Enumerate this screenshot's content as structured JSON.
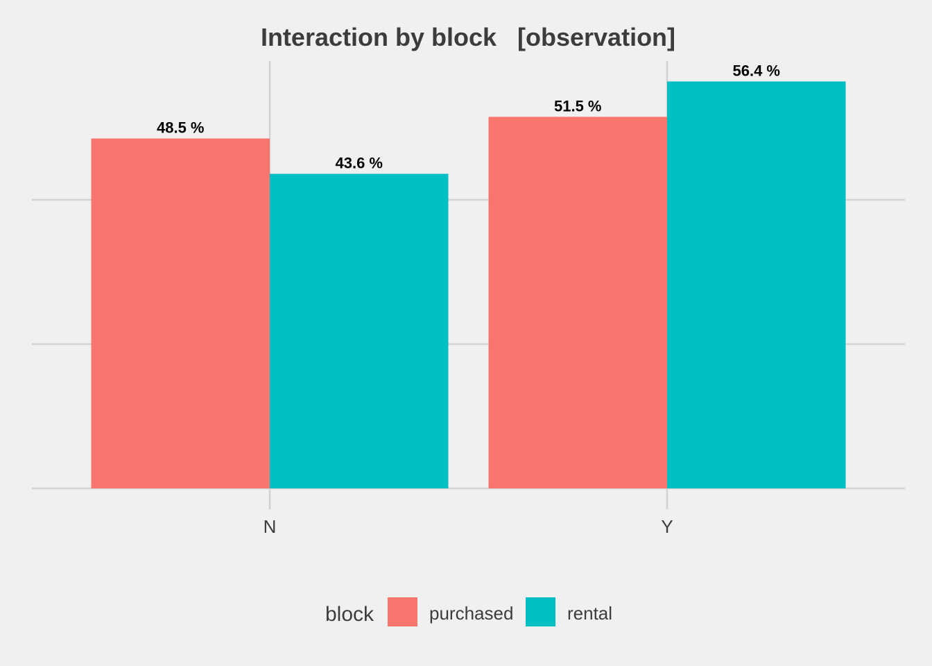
{
  "chart_data": {
    "type": "bar",
    "title": "Interaction by block   [observation]",
    "xlabel": "",
    "ylabel": "",
    "categories": [
      "N",
      "Y"
    ],
    "series": [
      {
        "name": "purchased",
        "color": "#F8766D",
        "values": [
          48.5,
          51.5
        ],
        "labels": [
          "48.5 %",
          "51.5 %"
        ]
      },
      {
        "name": "rental",
        "color": "#00BFC4",
        "values": [
          43.6,
          56.4
        ],
        "labels": [
          "43.6 %",
          "56.4 %"
        ]
      }
    ],
    "ylim": [
      0,
      60
    ],
    "y_gridlines": [
      0,
      20,
      40
    ],
    "y_tick_labels_shown": false,
    "grid": true,
    "legend": {
      "title": "block",
      "position": "bottom",
      "items": [
        "purchased",
        "rental"
      ]
    }
  }
}
